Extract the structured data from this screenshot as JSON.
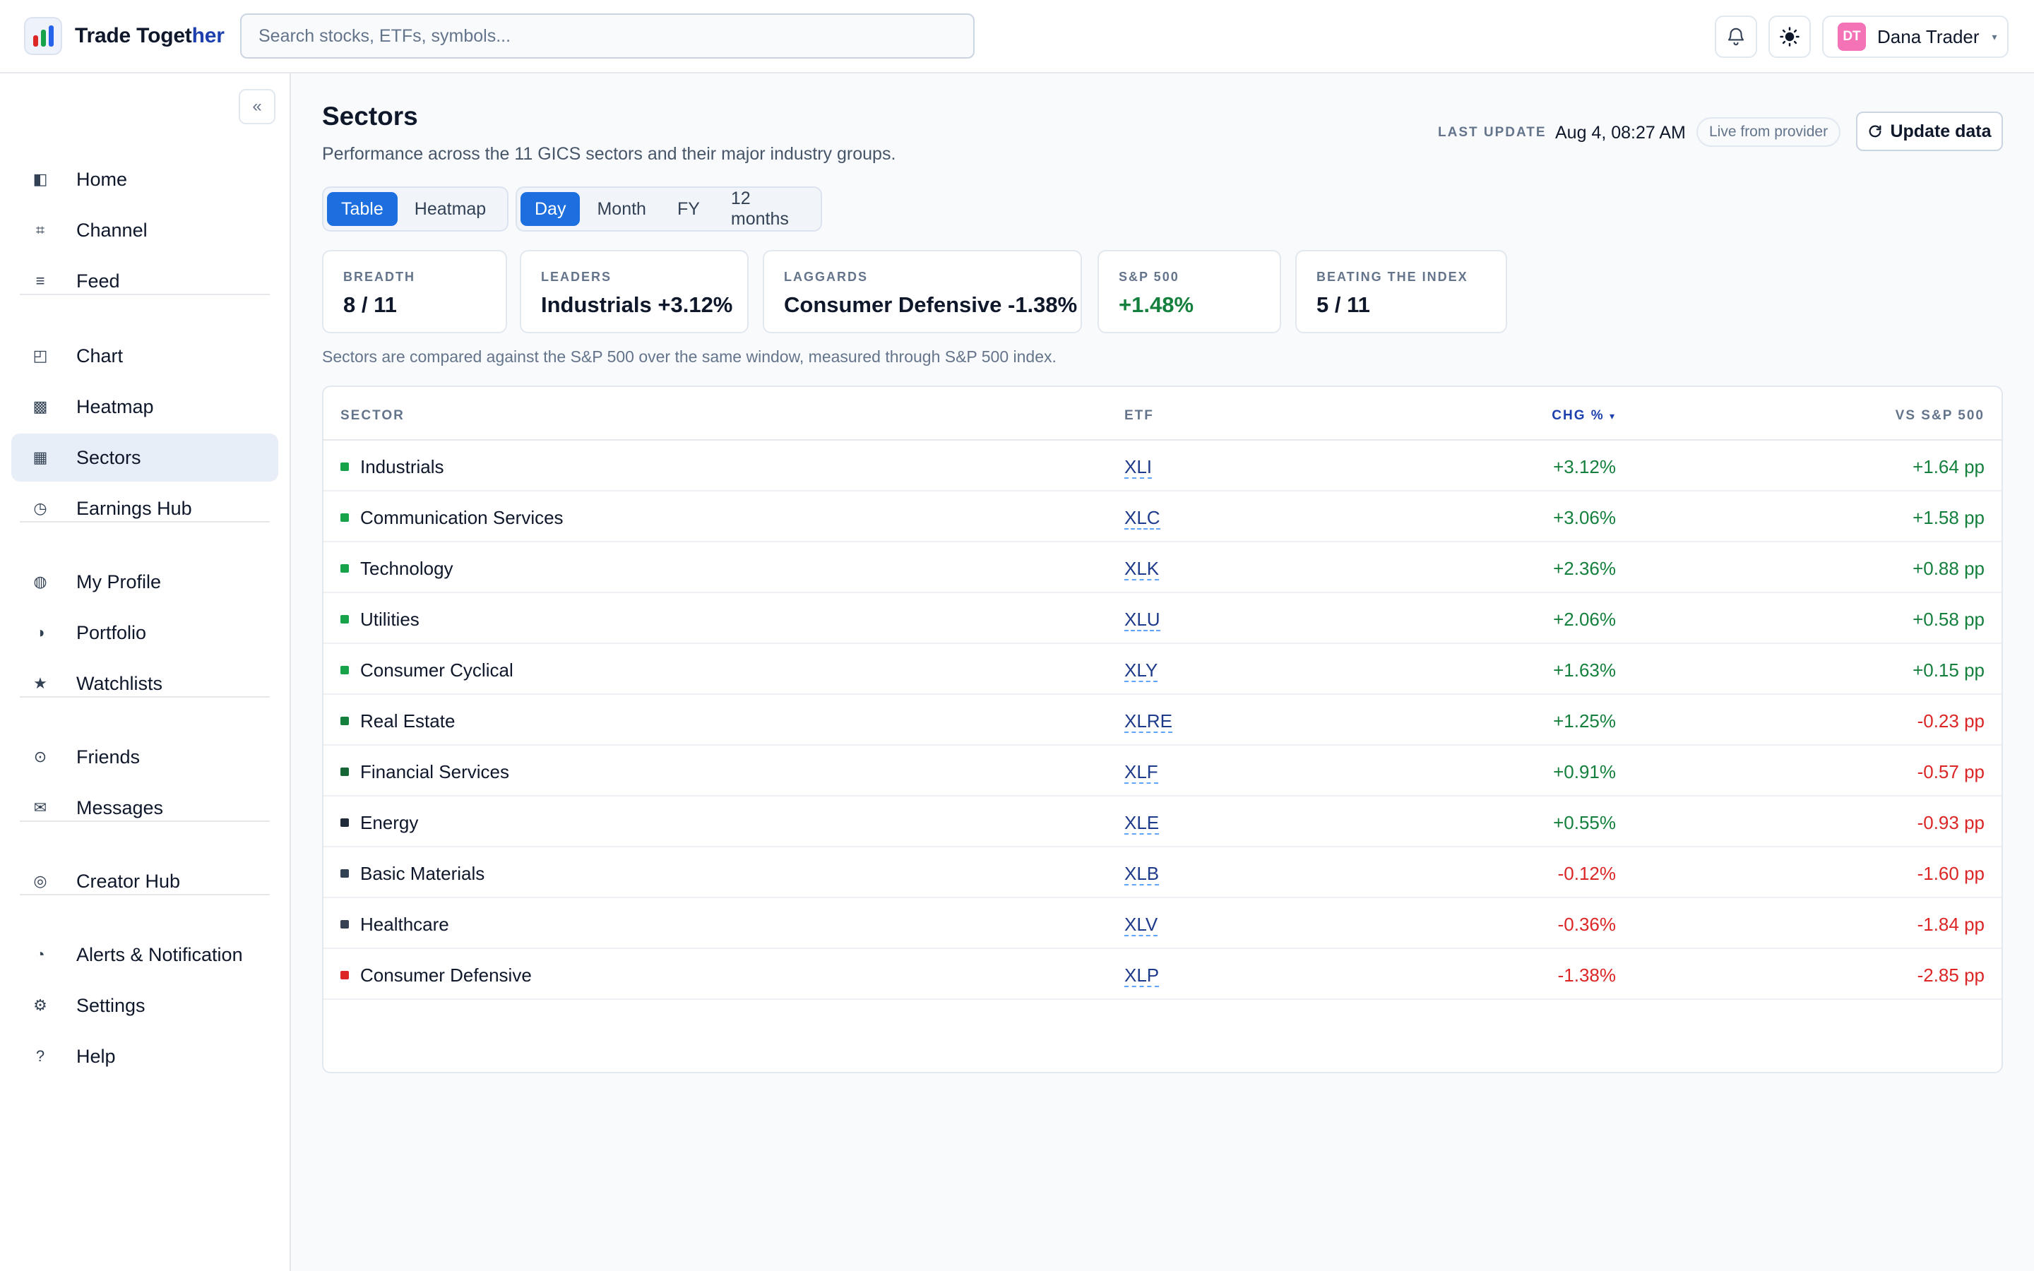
{
  "app": {
    "brand_prefix": "Trade Toget",
    "brand_suffix": "her",
    "search_placeholder": "Search stocks, ETFs, symbols...",
    "user": {
      "initials": "DT",
      "name": "Dana Trader"
    },
    "colors": {
      "accent": "#1d6fe0",
      "positive": "#15803d",
      "negative": "#dc2626",
      "avatar": "#f472b6"
    }
  },
  "sidebar": {
    "collapse_label": "«",
    "groups": [
      [
        {
          "label": "Home",
          "icon": "sidebar-panel-icon"
        },
        {
          "label": "Channel",
          "icon": "frame-icon"
        },
        {
          "label": "Feed",
          "icon": "list-icon"
        }
      ],
      [
        {
          "label": "Chart",
          "icon": "chart-icon"
        },
        {
          "label": "Heatmap",
          "icon": "heatmap-icon"
        },
        {
          "label": "Sectors",
          "icon": "grid-icon",
          "active": true
        },
        {
          "label": "Earnings Hub",
          "icon": "clock-icon"
        }
      ],
      [
        {
          "label": "My Profile",
          "icon": "profile-icon"
        },
        {
          "label": "Portfolio",
          "icon": "half-circle-icon"
        },
        {
          "label": "Watchlists",
          "icon": "star-icon"
        }
      ],
      [
        {
          "label": "Friends",
          "icon": "friends-icon"
        },
        {
          "label": "Messages",
          "icon": "mail-icon"
        }
      ],
      [
        {
          "label": "Creator Hub",
          "icon": "target-icon"
        }
      ],
      [
        {
          "label": "Alerts & Notification",
          "icon": "pie-icon"
        },
        {
          "label": "Settings",
          "icon": "gear-icon"
        },
        {
          "label": "Help",
          "icon": "help-icon"
        }
      ]
    ]
  },
  "page": {
    "title": "Sectors",
    "subtitle": "Performance across the 11 GICS sectors and their major industry groups.",
    "last_update_label": "LAST UPDATE",
    "last_update_value": "Aug 4, 08:27 AM",
    "live_label": "Live from provider",
    "update_button": "Update data",
    "view_toggle": {
      "options": [
        "Table",
        "Heatmap"
      ],
      "selected": "Table"
    },
    "period_toggle": {
      "options": [
        "Day",
        "Month",
        "FY",
        "12 months"
      ],
      "selected": "Day"
    },
    "stats": [
      {
        "label": "BREADTH",
        "value": "8 / 11",
        "tone": "neutral"
      },
      {
        "label": "LEADERS",
        "value": "Industrials +3.12%",
        "tone": "neutral"
      },
      {
        "label": "LAGGARDS",
        "value": "Consumer Defensive -1.38%",
        "tone": "neutral"
      },
      {
        "label": "S&P 500",
        "value": "+1.48%",
        "tone": "positive"
      },
      {
        "label": "BEATING THE INDEX",
        "value": "5 / 11",
        "tone": "neutral"
      }
    ],
    "note": "Sectors are compared against the S&P 500 over the same window, measured through S&P 500 index."
  },
  "table": {
    "columns": {
      "sector": "SECTOR",
      "etf": "ETF",
      "chg": "CHG %",
      "chg_sort": "▾",
      "vs": "VS S&P 500"
    },
    "rows": [
      {
        "sector": "Industrials",
        "etf": "XLI",
        "chg": "+3.12%",
        "vs": "+1.64 pp",
        "dot": "#16a34a"
      },
      {
        "sector": "Communication Services",
        "etf": "XLC",
        "chg": "+3.06%",
        "vs": "+1.58 pp",
        "dot": "#16a34a"
      },
      {
        "sector": "Technology",
        "etf": "XLK",
        "chg": "+2.36%",
        "vs": "+0.88 pp",
        "dot": "#16a34a"
      },
      {
        "sector": "Utilities",
        "etf": "XLU",
        "chg": "+2.06%",
        "vs": "+0.58 pp",
        "dot": "#16a34a"
      },
      {
        "sector": "Consumer Cyclical",
        "etf": "XLY",
        "chg": "+1.63%",
        "vs": "+0.15 pp",
        "dot": "#16a34a"
      },
      {
        "sector": "Real Estate",
        "etf": "XLRE",
        "chg": "+1.25%",
        "vs": "-0.23 pp",
        "dot": "#15803d"
      },
      {
        "sector": "Financial Services",
        "etf": "XLF",
        "chg": "+0.91%",
        "vs": "-0.57 pp",
        "dot": "#166534"
      },
      {
        "sector": "Energy",
        "etf": "XLE",
        "chg": "+0.55%",
        "vs": "-0.93 pp",
        "dot": "#1f2937"
      },
      {
        "sector": "Basic Materials",
        "etf": "XLB",
        "chg": "-0.12%",
        "vs": "-1.60 pp",
        "dot": "#334155"
      },
      {
        "sector": "Healthcare",
        "etf": "XLV",
        "chg": "-0.36%",
        "vs": "-1.84 pp",
        "dot": "#374151"
      },
      {
        "sector": "Consumer Defensive",
        "etf": "XLP",
        "chg": "-1.38%",
        "vs": "-2.85 pp",
        "dot": "#dc2626"
      }
    ]
  }
}
